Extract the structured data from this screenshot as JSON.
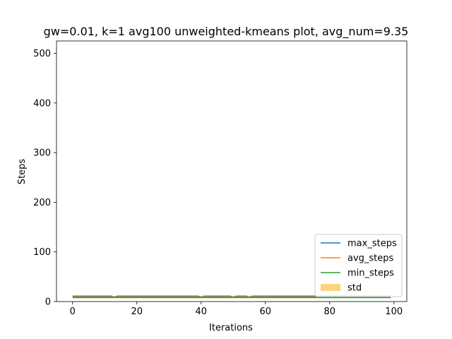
{
  "chart_data": {
    "type": "line",
    "title": "gw=0.01, k=1 avg100 unweighted-kmeans plot, avg_num=9.35",
    "xlabel": "Iterations",
    "ylabel": "Steps",
    "xlim": [
      -5,
      104
    ],
    "ylim": [
      0,
      525
    ],
    "xticks": [
      0,
      20,
      40,
      60,
      80,
      100
    ],
    "yticks": [
      0,
      100,
      200,
      300,
      400,
      500
    ],
    "grid": false,
    "legend_position": "lower-right",
    "x": {
      "start": 0,
      "end": 99,
      "step": 1
    },
    "series": [
      {
        "name": "max_steps",
        "color": "#1f77b4",
        "kind": "line",
        "value": 11,
        "dips": [
          13,
          40,
          50,
          55
        ]
      },
      {
        "name": "avg_steps",
        "color": "#ff7f0e",
        "kind": "line",
        "value": 9.35
      },
      {
        "name": "min_steps",
        "color": "#2ca02c",
        "kind": "line",
        "value": 8
      },
      {
        "name": "std",
        "color": "#ffd27f",
        "kind": "band",
        "lower": 8.3,
        "upper": 10.4
      }
    ]
  }
}
